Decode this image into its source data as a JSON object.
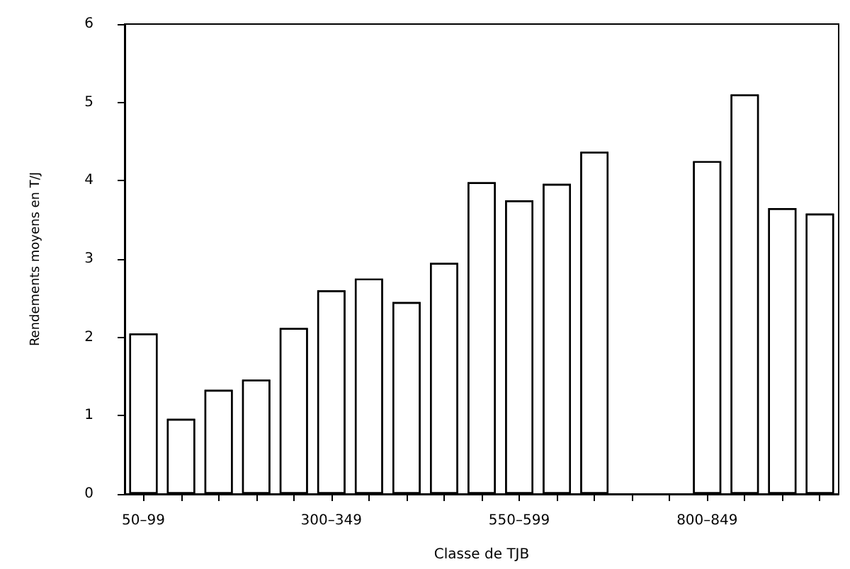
{
  "chart_data": {
    "type": "bar",
    "xlabel": "Classe de TJB",
    "ylabel": "Rendements moyens en T/J",
    "categories": [
      "50–99",
      null,
      null,
      null,
      null,
      "300–349",
      null,
      null,
      null,
      null,
      "550–599",
      null,
      null,
      null,
      null,
      "800–849",
      null,
      null,
      null
    ],
    "series": [
      {
        "color": "#ffffff",
        "values": [
          2.05,
          0.96,
          1.33,
          1.46,
          2.12,
          2.6,
          2.75,
          2.45,
          2.95,
          3.98,
          3.75,
          3.96,
          4.37,
          null,
          null,
          4.25,
          5.1,
          3.65,
          3.58
        ]
      }
    ],
    "ylim": [
      0,
      6
    ],
    "yticks": [
      0,
      1,
      2,
      3,
      4,
      5,
      6
    ],
    "grid": false
  }
}
